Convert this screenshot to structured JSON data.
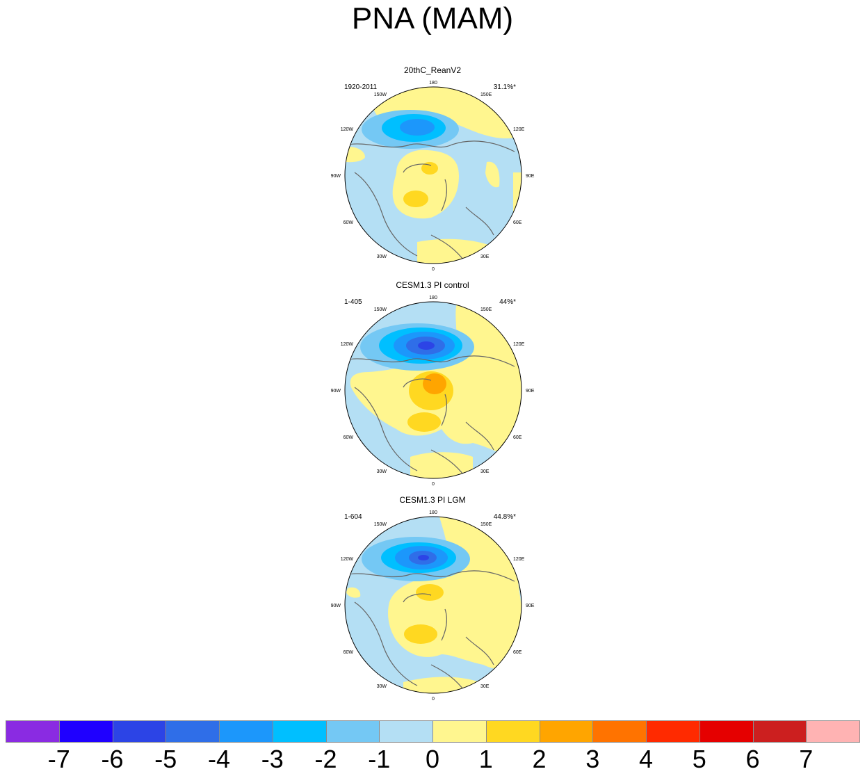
{
  "title": "PNA (MAM)",
  "panels": [
    {
      "title": "20thC_ReanV2",
      "period": "1920-2011",
      "variance": "31.1%*"
    },
    {
      "title": "CESM1.3 PI control",
      "period": "1-405",
      "variance": "44%*"
    },
    {
      "title": "CESM1.3 PI LGM",
      "period": "1-604",
      "variance": "44.8%*"
    }
  ],
  "lon_labels": [
    "180",
    "150E",
    "120E",
    "90E",
    "60E",
    "30E",
    "0",
    "30W",
    "60W",
    "90W",
    "120W",
    "150W"
  ],
  "colorbar": {
    "colors": [
      "#8a2be2",
      "#1f00ff",
      "#2c44e6",
      "#2f6ee8",
      "#1c97fb",
      "#00bfff",
      "#74c8f4",
      "#b4dff4",
      "#fff68f",
      "#ffd821",
      "#ffa500",
      "#ff7300",
      "#ff2a00",
      "#e50000",
      "#cc1f1f",
      "#ffb3b3"
    ],
    "labels": [
      "-7",
      "-6",
      "-5",
      "-4",
      "-3",
      "-2",
      "-1",
      "0",
      "1",
      "2",
      "3",
      "4",
      "5",
      "6",
      "7"
    ]
  }
}
